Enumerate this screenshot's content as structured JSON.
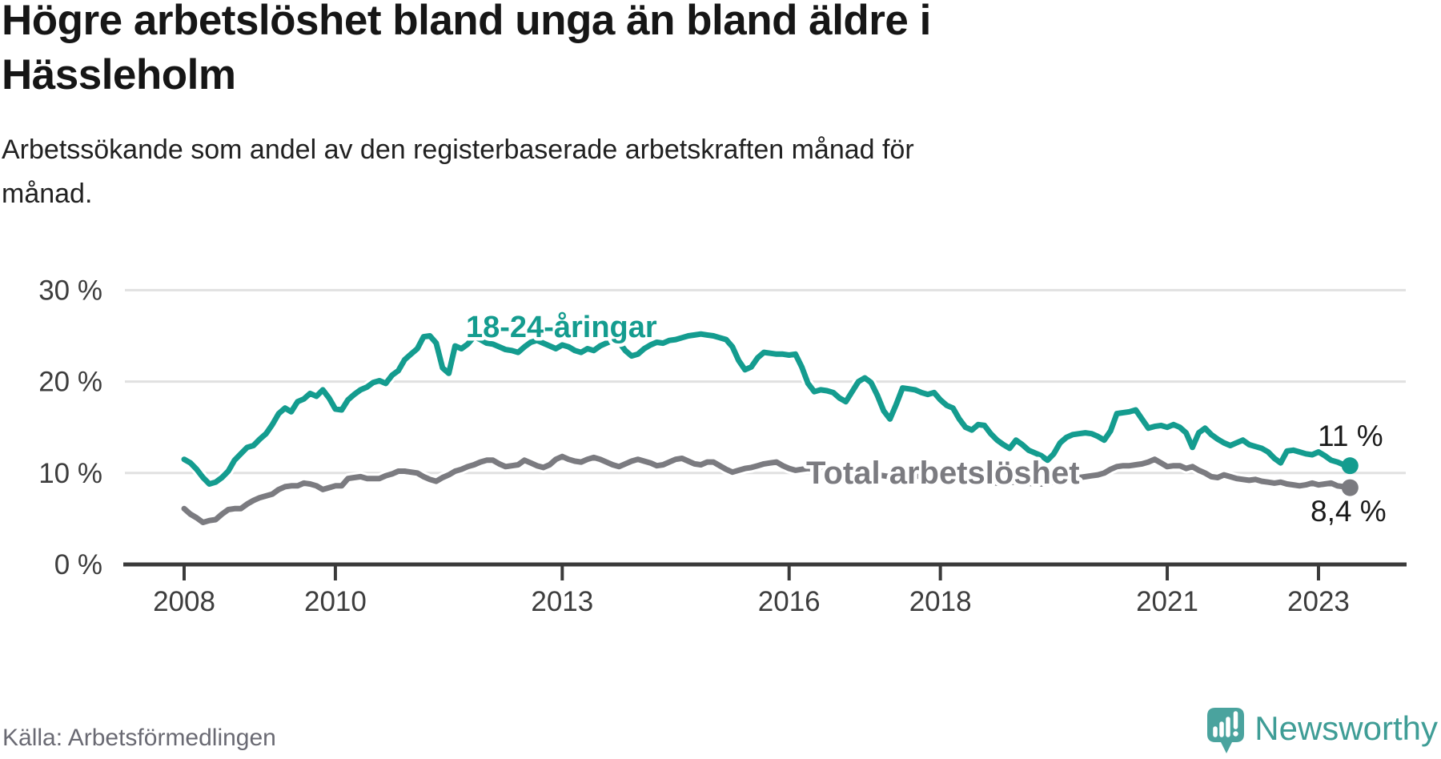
{
  "header": {
    "title": "Högre arbetslöshet bland unga än bland äldre i\nHässleholm",
    "subtitle": "Arbetssökande som andel av den registerbaserade arbetskraften månad för\nmånad."
  },
  "footer": {
    "source": "Källa: Arbetsförmedlingen",
    "brand": "Newsworthy"
  },
  "colors": {
    "youth": "#149c8f",
    "total": "#7b7b80",
    "grid": "#e1e1e1",
    "axis": "#3a3a3a",
    "axis_text": "#3d3d3d",
    "end_label": "#1a1a1a",
    "logo": "#4aa39e",
    "logo_text": "#3f9d96"
  },
  "chart_data": {
    "type": "line",
    "unit": "%",
    "frequency": "monthly",
    "x_start": "2008-01",
    "x_end": "2023-06",
    "grid": "horizontal",
    "legend_position": "inline-labels",
    "x_axis": {
      "ticks": [
        2008,
        2010,
        2013,
        2016,
        2018,
        2021,
        2023
      ]
    },
    "y_axis": {
      "values": [
        0,
        10,
        20,
        30
      ],
      "ticks": [
        "0 %",
        "10 %",
        "20 %",
        "30 %"
      ],
      "ylim": [
        0,
        32
      ]
    },
    "series": [
      {
        "name": "18-24-åringar",
        "color": "#149c8f",
        "end_label": "11 %",
        "last_value": 11,
        "values": [
          11.5,
          11.1,
          10.4,
          9.5,
          8.8,
          9.0,
          9.5,
          10.2,
          11.4,
          12.1,
          12.8,
          13.0,
          13.7,
          14.3,
          15.3,
          16.5,
          17.1,
          16.7,
          17.8,
          18.1,
          18.7,
          18.4,
          19.1,
          18.2,
          17.0,
          16.9,
          18.0,
          18.6,
          19.1,
          19.4,
          19.9,
          20.1,
          19.8,
          20.7,
          21.2,
          22.4,
          23.0,
          23.6,
          24.9,
          25.0,
          24.2,
          21.5,
          20.9,
          23.9,
          23.6,
          24.1,
          24.9,
          24.6,
          24.2,
          24.1,
          23.8,
          23.5,
          23.4,
          23.2,
          23.8,
          24.3,
          24.5,
          24.2,
          23.9,
          23.6,
          24.0,
          23.8,
          23.4,
          23.2,
          23.6,
          23.4,
          23.9,
          24.2,
          24.5,
          24.3,
          23.4,
          22.8,
          23.0,
          23.6,
          24.0,
          24.3,
          24.2,
          24.5,
          24.6,
          24.8,
          25.0,
          25.1,
          25.2,
          25.1,
          25.0,
          24.8,
          24.6,
          23.8,
          22.3,
          21.3,
          21.6,
          22.6,
          23.2,
          23.1,
          23.0,
          23.0,
          22.9,
          23.0,
          21.6,
          19.8,
          18.9,
          19.1,
          19.0,
          18.8,
          18.2,
          17.8,
          18.9,
          20.0,
          20.4,
          19.9,
          18.5,
          16.8,
          15.9,
          17.5,
          19.3,
          19.2,
          19.1,
          18.8,
          18.6,
          18.8,
          18.0,
          17.4,
          17.1,
          15.9,
          15.0,
          14.7,
          15.3,
          15.2,
          14.3,
          13.6,
          13.1,
          12.7,
          13.6,
          13.1,
          12.5,
          12.2,
          11.9,
          11.4,
          12.1,
          13.3,
          13.9,
          14.2,
          14.3,
          14.4,
          14.3,
          14.0,
          13.6,
          14.6,
          16.5,
          16.6,
          16.7,
          16.9,
          15.9,
          14.9,
          15.1,
          15.2,
          15.0,
          15.3,
          15.0,
          14.4,
          12.8,
          14.4,
          14.9,
          14.2,
          13.7,
          13.3,
          13.0,
          13.3,
          13.6,
          13.1,
          12.9,
          12.7,
          12.3,
          11.6,
          11.1,
          12.4,
          12.5,
          12.3,
          12.1,
          12.0,
          12.3,
          11.9,
          11.4,
          11.2,
          10.9,
          10.8
        ]
      },
      {
        "name": "Total arbetslöshet",
        "color": "#7b7b80",
        "end_label": "8,4 %",
        "last_value": 8.4,
        "values": [
          6.1,
          5.5,
          5.1,
          4.6,
          4.8,
          4.9,
          5.5,
          6.0,
          6.1,
          6.1,
          6.6,
          7.0,
          7.3,
          7.5,
          7.7,
          8.2,
          8.5,
          8.6,
          8.6,
          8.9,
          8.8,
          8.6,
          8.2,
          8.4,
          8.6,
          8.6,
          9.4,
          9.5,
          9.6,
          9.4,
          9.4,
          9.4,
          9.7,
          9.9,
          10.2,
          10.2,
          10.1,
          10.0,
          9.6,
          9.3,
          9.1,
          9.5,
          9.8,
          10.2,
          10.4,
          10.7,
          10.9,
          11.2,
          11.4,
          11.4,
          11.0,
          10.7,
          10.8,
          10.9,
          11.4,
          11.1,
          10.8,
          10.6,
          10.9,
          11.5,
          11.8,
          11.5,
          11.3,
          11.2,
          11.5,
          11.7,
          11.5,
          11.2,
          10.9,
          10.7,
          11.0,
          11.3,
          11.5,
          11.3,
          11.1,
          10.8,
          10.9,
          11.2,
          11.5,
          11.6,
          11.3,
          11.0,
          10.9,
          11.2,
          11.2,
          10.8,
          10.4,
          10.1,
          10.3,
          10.5,
          10.6,
          10.8,
          11.0,
          11.1,
          11.2,
          10.8,
          10.5,
          10.3,
          10.4,
          10.5,
          10.4,
          10.3,
          10.4,
          10.5,
          10.4,
          10.2,
          10.1,
          10.0,
          10.0,
          9.9,
          9.8,
          9.7,
          9.6,
          9.7,
          9.8,
          9.8,
          9.7,
          9.6,
          9.5,
          9.5,
          9.4,
          9.3,
          9.2,
          9.1,
          9.0,
          9.0,
          9.1,
          9.1,
          9.0,
          8.9,
          8.9,
          9.0,
          9.0,
          8.9,
          8.9,
          8.8,
          8.8,
          8.9,
          9.0,
          9.2,
          9.3,
          9.4,
          9.5,
          9.6,
          9.7,
          9.8,
          10.0,
          10.4,
          10.7,
          10.8,
          10.8,
          10.9,
          11.0,
          11.2,
          11.5,
          11.1,
          10.7,
          10.8,
          10.8,
          10.5,
          10.7,
          10.3,
          10.0,
          9.6,
          9.5,
          9.8,
          9.6,
          9.4,
          9.3,
          9.2,
          9.3,
          9.1,
          9.0,
          8.9,
          9.0,
          8.8,
          8.7,
          8.6,
          8.7,
          8.9,
          8.7,
          8.8,
          8.9,
          8.6,
          8.5,
          8.4
        ]
      }
    ]
  }
}
